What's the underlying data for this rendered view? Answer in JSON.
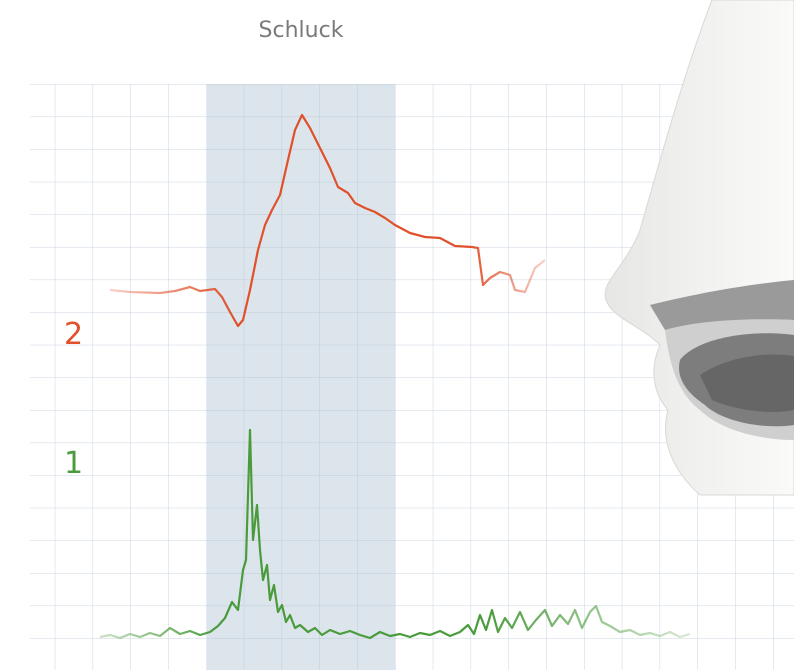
{
  "chart_data": {
    "type": "line",
    "band": {
      "label": "Schluck",
      "x": [
        207,
        395
      ]
    },
    "xlim": [
      30,
      794
    ],
    "ylim": [
      0,
      586
    ],
    "series": [
      {
        "name": "2",
        "color": "#e0502a",
        "x": [
          110,
          130,
          160,
          175,
          190,
          200,
          215,
          222,
          230,
          238,
          243,
          250,
          258,
          265,
          272,
          280,
          288,
          295,
          302,
          310,
          320,
          330,
          338,
          348,
          355,
          365,
          375,
          385,
          395,
          410,
          425,
          440,
          455,
          472,
          478,
          483,
          490,
          500,
          510,
          515,
          525,
          535,
          545
        ],
        "values": [
          350,
          348,
          347,
          349,
          353,
          349,
          351,
          343,
          328,
          314,
          320,
          350,
          390,
          415,
          430,
          445,
          480,
          510,
          525,
          512,
          492,
          472,
          453,
          447,
          437,
          432,
          428,
          422,
          415,
          407,
          403,
          402,
          394,
          393,
          392,
          355,
          362,
          368,
          365,
          350,
          348,
          372,
          380
        ]
      },
      {
        "name": "1",
        "color": "#4a9b3c",
        "x": [
          100,
          110,
          120,
          130,
          140,
          150,
          160,
          170,
          180,
          190,
          200,
          210,
          218,
          225,
          232,
          238,
          243,
          246,
          250,
          253,
          257,
          260,
          263,
          267,
          270,
          274,
          278,
          282,
          286,
          290,
          295,
          300,
          308,
          315,
          322,
          330,
          340,
          350,
          360,
          370,
          380,
          390,
          400,
          410,
          420,
          430,
          440,
          450,
          460,
          468,
          474,
          480,
          486,
          492,
          498,
          505,
          512,
          520,
          528,
          536,
          545,
          552,
          560,
          568,
          575,
          582,
          590,
          596,
          602,
          610,
          620,
          630,
          640,
          650,
          660,
          670,
          680,
          690
        ],
        "values": [
          3,
          5,
          2,
          6,
          3,
          7,
          4,
          12,
          6,
          9,
          5,
          8,
          14,
          22,
          38,
          30,
          70,
          80,
          210,
          100,
          135,
          90,
          60,
          75,
          40,
          55,
          28,
          35,
          18,
          25,
          12,
          15,
          8,
          12,
          5,
          10,
          6,
          9,
          5,
          2,
          8,
          4,
          6,
          3,
          7,
          5,
          9,
          4,
          8,
          15,
          6,
          25,
          10,
          30,
          8,
          22,
          12,
          28,
          10,
          20,
          30,
          14,
          25,
          16,
          30,
          12,
          28,
          34,
          18,
          14,
          8,
          10,
          5,
          7,
          4,
          8,
          3,
          6
        ]
      }
    ]
  }
}
